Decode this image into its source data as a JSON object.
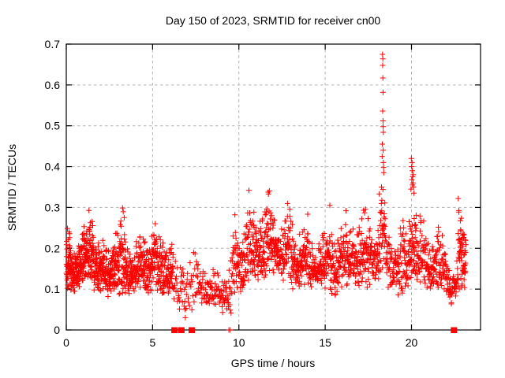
{
  "window": {
    "background_color": "#ffffff"
  },
  "chart_data": {
    "type": "scatter",
    "title": "Day 150 of 2023, SRMTID for receiver cn00",
    "xlabel": "GPS time / hours",
    "ylabel": "SRMTID / TECUs",
    "xlim": [
      0,
      24
    ],
    "ylim": [
      0,
      0.7
    ],
    "xticks": {
      "values": [
        0,
        5,
        10,
        15,
        20
      ],
      "labels": [
        "0",
        "5",
        "10",
        "15",
        "20"
      ]
    },
    "yticks": {
      "values": [
        0,
        0.1,
        0.2,
        0.3,
        0.4,
        0.5,
        0.6,
        0.7
      ],
      "labels": [
        "0",
        "0.1",
        "0.2",
        "0.3",
        "0.4",
        "0.5",
        "0.6",
        "0.7"
      ]
    },
    "grid": {
      "show": true,
      "style": "dashed",
      "color": "#b4b4b4"
    },
    "legend": "none",
    "marker": {
      "shape": "plus",
      "color": "#ff0000",
      "size": 7
    },
    "seed": 1503,
    "band_segments_columns": [
      "hour_start",
      "hour_end",
      "tecu_min",
      "tecu_max",
      "n_points"
    ],
    "band_segments": [
      [
        0.0,
        0.5,
        0.09,
        0.28,
        90
      ],
      [
        0.5,
        1.0,
        0.1,
        0.26,
        85
      ],
      [
        1.0,
        1.3,
        0.12,
        0.28,
        50
      ],
      [
        1.3,
        1.6,
        0.12,
        0.38,
        50
      ],
      [
        1.6,
        2.1,
        0.09,
        0.26,
        75
      ],
      [
        2.1,
        2.6,
        0.08,
        0.25,
        70
      ],
      [
        2.6,
        3.0,
        0.1,
        0.3,
        60
      ],
      [
        3.0,
        3.6,
        0.08,
        0.31,
        80
      ],
      [
        3.6,
        4.2,
        0.08,
        0.26,
        75
      ],
      [
        4.2,
        4.8,
        0.09,
        0.28,
        75
      ],
      [
        4.8,
        5.3,
        0.09,
        0.33,
        65
      ],
      [
        5.3,
        5.8,
        0.08,
        0.26,
        60
      ],
      [
        5.8,
        6.2,
        0.08,
        0.31,
        48
      ],
      [
        6.2,
        6.8,
        0.04,
        0.22,
        30
      ],
      [
        6.8,
        7.5,
        0.04,
        0.23,
        28
      ],
      [
        7.5,
        8.2,
        0.05,
        0.2,
        42
      ],
      [
        8.2,
        9.0,
        0.05,
        0.17,
        48
      ],
      [
        9.0,
        9.6,
        0.04,
        0.19,
        38
      ],
      [
        9.6,
        10.2,
        0.08,
        0.31,
        58
      ],
      [
        10.2,
        10.7,
        0.1,
        0.39,
        52
      ],
      [
        10.7,
        11.2,
        0.12,
        0.31,
        58
      ],
      [
        11.2,
        11.8,
        0.12,
        0.39,
        68
      ],
      [
        11.8,
        12.4,
        0.13,
        0.31,
        72
      ],
      [
        12.4,
        13.0,
        0.12,
        0.35,
        62
      ],
      [
        13.0,
        13.5,
        0.1,
        0.28,
        58
      ],
      [
        13.5,
        14.0,
        0.1,
        0.33,
        58
      ],
      [
        14.0,
        14.6,
        0.1,
        0.26,
        62
      ],
      [
        14.6,
        15.2,
        0.1,
        0.29,
        62
      ],
      [
        15.2,
        15.8,
        0.08,
        0.33,
        62
      ],
      [
        15.8,
        16.4,
        0.1,
        0.31,
        62
      ],
      [
        16.4,
        17.0,
        0.1,
        0.33,
        62
      ],
      [
        17.0,
        17.6,
        0.1,
        0.31,
        62
      ],
      [
        17.6,
        18.1,
        0.12,
        0.3,
        52
      ],
      [
        18.1,
        18.5,
        0.14,
        0.38,
        42
      ],
      [
        18.5,
        19.2,
        0.1,
        0.28,
        62
      ],
      [
        19.2,
        19.8,
        0.08,
        0.3,
        58
      ],
      [
        19.8,
        20.3,
        0.12,
        0.4,
        58
      ],
      [
        20.3,
        21.0,
        0.1,
        0.3,
        68
      ],
      [
        21.0,
        21.6,
        0.1,
        0.28,
        58
      ],
      [
        21.6,
        22.2,
        0.08,
        0.25,
        52
      ],
      [
        22.2,
        22.7,
        0.06,
        0.2,
        36
      ],
      [
        22.7,
        23.15,
        0.1,
        0.335,
        68
      ]
    ],
    "explicit_points": {
      "spike_18h": [
        [
          18.3,
          0.425
        ],
        [
          18.31,
          0.455
        ],
        [
          18.32,
          0.675
        ],
        [
          18.33,
          0.648
        ],
        [
          18.33,
          0.536
        ],
        [
          18.34,
          0.664
        ],
        [
          18.34,
          0.617
        ],
        [
          18.35,
          0.512
        ],
        [
          18.35,
          0.582
        ],
        [
          18.36,
          0.498
        ],
        [
          18.36,
          0.44
        ],
        [
          18.37,
          0.484
        ],
        [
          18.37,
          0.41
        ],
        [
          18.38,
          0.398
        ],
        [
          18.39,
          0.385
        ]
      ],
      "cluster_20h": [
        [
          19.97,
          0.345
        ],
        [
          19.99,
          0.42
        ],
        [
          20.01,
          0.4
        ],
        [
          20.02,
          0.368
        ],
        [
          20.03,
          0.41
        ],
        [
          20.05,
          0.39
        ],
        [
          20.06,
          0.355
        ],
        [
          20.07,
          0.375
        ],
        [
          20.09,
          0.36
        ],
        [
          20.1,
          0.38
        ],
        [
          20.12,
          0.35
        ],
        [
          20.14,
          0.335
        ]
      ],
      "near_zero": [
        [
          6.9,
          0.03
        ]
      ]
    },
    "zero_value_clusters_hours": [
      6.27,
      6.67,
      7.27,
      22.46
    ],
    "zero_value_points_hours": [
      9.42,
      9.5
    ]
  }
}
